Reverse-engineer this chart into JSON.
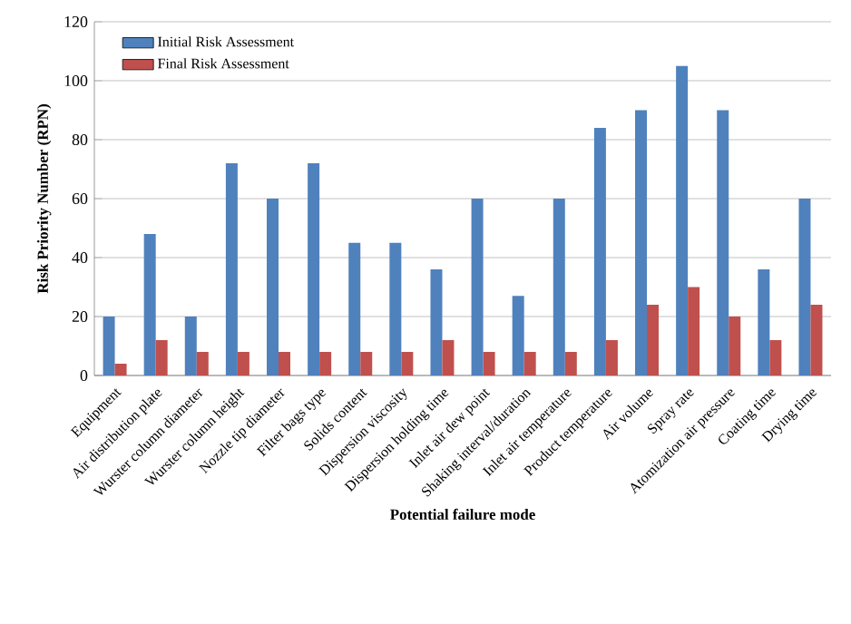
{
  "chart_data": {
    "type": "bar",
    "xlabel": "Potential failure mode",
    "ylabel": "Risk Priority Number (RPN)",
    "categories": [
      "Equipment",
      "Air distribution plate",
      "Wurster column diameter",
      "Wurster column height",
      "Nozzle tip diameter",
      "Filter bags type",
      "Solids content",
      "Dispersion viscosity",
      "Dispersion holding time",
      "Inlet air dew point",
      "Shaking interval/duration",
      "Inlet air temperature",
      "Product temperature",
      "Air volume",
      "Spray rate",
      "Atomization air pressure",
      "Coating time",
      "Drying time"
    ],
    "series": [
      {
        "name": "Initial Risk Assessment",
        "color": "#4f81bd",
        "values": [
          20,
          48,
          20,
          72,
          60,
          72,
          45,
          45,
          36,
          60,
          27,
          60,
          84,
          90,
          105,
          90,
          36,
          60
        ]
      },
      {
        "name": "Final Risk Assessment",
        "color": "#c0504d",
        "values": [
          4,
          12,
          8,
          8,
          8,
          8,
          8,
          8,
          12,
          8,
          8,
          8,
          12,
          24,
          30,
          20,
          12,
          24
        ]
      }
    ],
    "ylim": [
      0,
      120
    ],
    "yticks": [
      0,
      20,
      40,
      60,
      80,
      100,
      120
    ],
    "grid": "y",
    "legend": "top left"
  }
}
